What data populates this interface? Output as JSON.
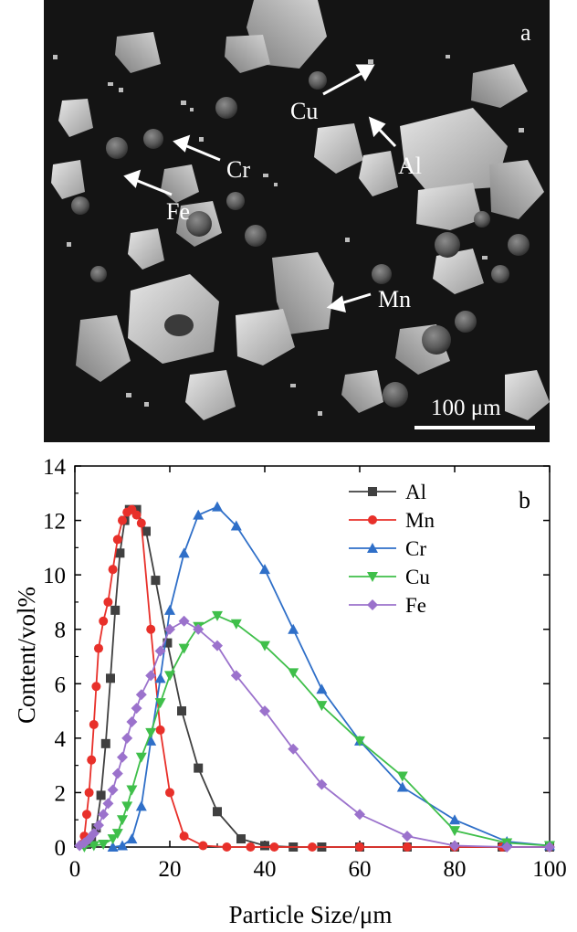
{
  "panel_a": {
    "label": "a",
    "scale_bar_label": "100 μm",
    "annotations": [
      {
        "text": "Cu"
      },
      {
        "text": "Al"
      },
      {
        "text": "Cr"
      },
      {
        "text": "Fe"
      },
      {
        "text": "Mn"
      }
    ]
  },
  "chart_data": {
    "type": "line",
    "panel_label": "b",
    "xlabel": "Particle Size/μm",
    "ylabel": "Content/vol%",
    "xlim": [
      0,
      100
    ],
    "ylim": [
      0,
      14
    ],
    "xticks": [
      0,
      20,
      40,
      60,
      80,
      100
    ],
    "yticks": [
      0,
      2,
      4,
      6,
      8,
      10,
      12,
      14
    ],
    "legend_position": "top-right",
    "series": [
      {
        "name": "Al",
        "color": "#404040",
        "marker": "square",
        "x": [
          2.5,
          3.5,
          4.5,
          5.5,
          6.5,
          7.5,
          8.5,
          9.5,
          10.5,
          11.5,
          13,
          15,
          17,
          19.5,
          22.5,
          26,
          30,
          35,
          40,
          46,
          52,
          60,
          70,
          80,
          90,
          100
        ],
        "y": [
          0.1,
          0.3,
          0.7,
          1.9,
          3.8,
          6.2,
          8.7,
          10.8,
          12.0,
          12.4,
          12.4,
          11.6,
          9.8,
          7.5,
          5.0,
          2.9,
          1.3,
          0.3,
          0.05,
          0,
          0,
          0,
          0,
          0,
          0,
          0
        ]
      },
      {
        "name": "Mn",
        "color": "#e8302a",
        "marker": "circle",
        "x": [
          1.5,
          2,
          2.5,
          3,
          3.5,
          4,
          4.5,
          5,
          6,
          7,
          8,
          9,
          10,
          11,
          12,
          13,
          14,
          16,
          18,
          20,
          23,
          27,
          32,
          37,
          42,
          50,
          60,
          70,
          80,
          90,
          100
        ],
        "y": [
          0.1,
          0.4,
          1.2,
          2.0,
          3.2,
          4.5,
          5.9,
          7.3,
          8.3,
          9.0,
          10.2,
          11.3,
          12.0,
          12.3,
          12.4,
          12.2,
          11.9,
          8.0,
          4.3,
          2.0,
          0.4,
          0.05,
          0,
          0,
          0,
          0,
          0,
          0,
          0,
          0,
          0
        ]
      },
      {
        "name": "Cr",
        "color": "#2f6fc8",
        "marker": "triangle-up",
        "x": [
          8,
          10,
          12,
          14,
          16,
          18,
          20,
          23,
          26,
          30,
          34,
          40,
          46,
          52,
          60,
          69,
          80,
          91,
          100
        ],
        "y": [
          0,
          0.05,
          0.3,
          1.5,
          3.9,
          6.2,
          8.7,
          10.8,
          12.2,
          12.5,
          11.8,
          10.2,
          8.0,
          5.8,
          3.9,
          2.2,
          1.0,
          0.2,
          0.05
        ]
      },
      {
        "name": "Cu",
        "color": "#3fbf4a",
        "marker": "triangle-down",
        "x": [
          2,
          4,
          6,
          8,
          9,
          10,
          11,
          12,
          14,
          16,
          18,
          20,
          23,
          26,
          30,
          34,
          40,
          46,
          52,
          60,
          69,
          80,
          91,
          100
        ],
        "y": [
          0,
          0.05,
          0.1,
          0.3,
          0.5,
          1.0,
          1.5,
          2.1,
          3.3,
          4.2,
          5.3,
          6.3,
          7.3,
          8.1,
          8.5,
          8.2,
          7.4,
          6.4,
          5.2,
          3.9,
          2.6,
          0.6,
          0.15,
          0.05
        ]
      },
      {
        "name": "Fe",
        "color": "#9b72cc",
        "marker": "diamond",
        "x": [
          1,
          2,
          3,
          4,
          5,
          6,
          7,
          8,
          9,
          10,
          11,
          12,
          13,
          14,
          16,
          18,
          20,
          23,
          26,
          30,
          34,
          40,
          46,
          52,
          60,
          70,
          80,
          91,
          100
        ],
        "y": [
          0.05,
          0.15,
          0.3,
          0.5,
          0.8,
          1.2,
          1.6,
          2.1,
          2.7,
          3.3,
          4.0,
          4.6,
          5.1,
          5.6,
          6.3,
          7.2,
          8.0,
          8.3,
          8.0,
          7.4,
          6.3,
          5.0,
          3.6,
          2.3,
          1.2,
          0.4,
          0.05,
          0,
          0
        ]
      }
    ]
  }
}
